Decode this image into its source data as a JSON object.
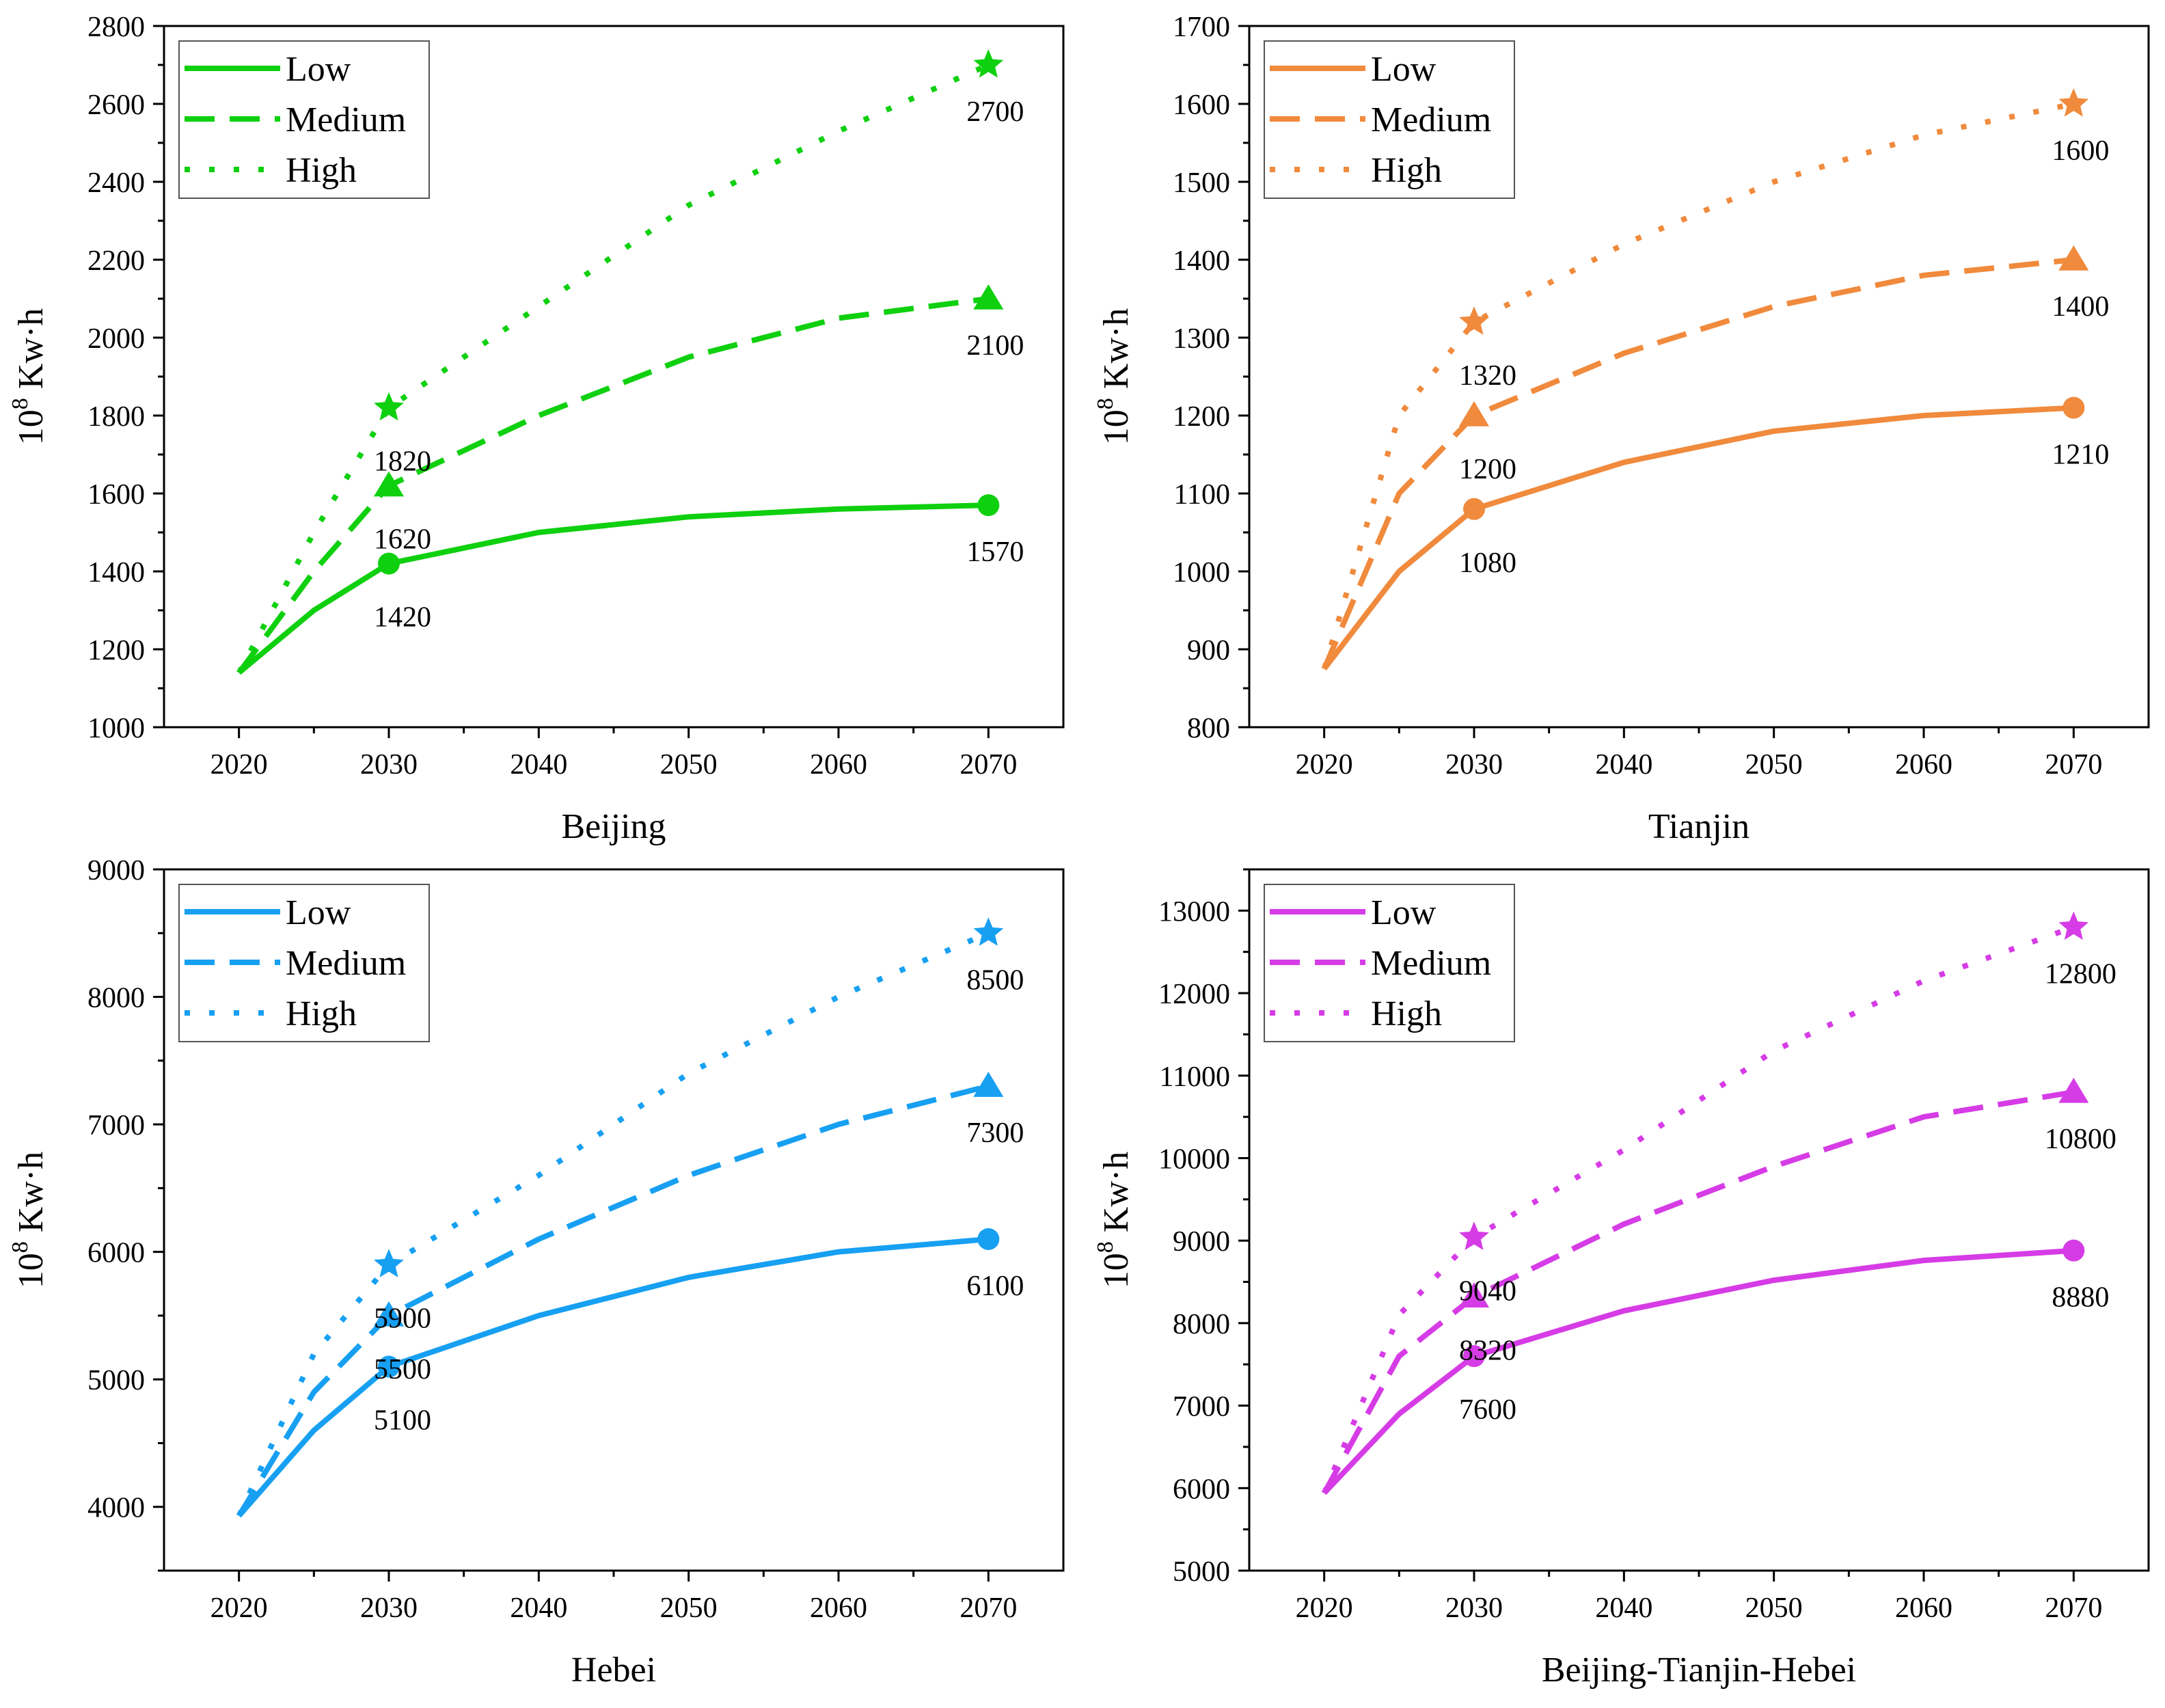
{
  "figure": {
    "y_unit_base": "10",
    "y_unit_exp": "8",
    "y_unit_rest": " Kw·h"
  },
  "chart_data": [
    {
      "type": "line",
      "xlabel": "Beijing",
      "ylabel": "10^8 Kw·h",
      "color": "#0fd00f",
      "x": [
        2020,
        2025,
        2030,
        2040,
        2050,
        2060,
        2070
      ],
      "xticks": [
        "2020",
        "2030",
        "2040",
        "2050",
        "2060",
        "2070"
      ],
      "ylim": [
        1000,
        2800
      ],
      "yticks": [
        "1000",
        "1200",
        "1400",
        "1600",
        "1800",
        "2000",
        "2200",
        "2400",
        "2600",
        "2800"
      ],
      "legend": "top-left",
      "series": [
        {
          "name": "Low",
          "style": "solid",
          "marker": "circle",
          "values": [
            1140,
            1300,
            1420,
            1500,
            1540,
            1560,
            1570
          ]
        },
        {
          "name": "Medium",
          "style": "dashed",
          "marker": "triangle",
          "values": [
            1140,
            1400,
            1620,
            1800,
            1950,
            2050,
            2100
          ]
        },
        {
          "name": "High",
          "style": "dotted",
          "marker": "star",
          "values": [
            1140,
            1500,
            1820,
            2080,
            2340,
            2530,
            2700
          ]
        }
      ],
      "annotations": [
        {
          "series": "Low",
          "x": 2030,
          "text": "1420"
        },
        {
          "series": "Medium",
          "x": 2030,
          "text": "1620"
        },
        {
          "series": "High",
          "x": 2030,
          "text": "1820"
        },
        {
          "series": "Low",
          "x": 2070,
          "text": "1570"
        },
        {
          "series": "Medium",
          "x": 2070,
          "text": "2100"
        },
        {
          "series": "High",
          "x": 2070,
          "text": "2700"
        }
      ]
    },
    {
      "type": "line",
      "xlabel": "Tianjin",
      "ylabel": "10^8 Kw·h",
      "color": "#f08a3c",
      "x": [
        2020,
        2025,
        2030,
        2040,
        2050,
        2060,
        2070
      ],
      "xticks": [
        "2020",
        "2030",
        "2040",
        "2050",
        "2060",
        "2070"
      ],
      "ylim": [
        800,
        1700
      ],
      "yticks": [
        "800",
        "900",
        "1000",
        "1100",
        "1200",
        "1300",
        "1400",
        "1500",
        "1600",
        "1700"
      ],
      "legend": "top-left",
      "series": [
        {
          "name": "Low",
          "style": "solid",
          "marker": "circle",
          "values": [
            875,
            1000,
            1080,
            1140,
            1180,
            1200,
            1210
          ]
        },
        {
          "name": "Medium",
          "style": "dashed",
          "marker": "triangle",
          "values": [
            875,
            1100,
            1200,
            1280,
            1340,
            1380,
            1400
          ]
        },
        {
          "name": "High",
          "style": "dotted",
          "marker": "star",
          "values": [
            875,
            1200,
            1320,
            1420,
            1500,
            1560,
            1600
          ]
        }
      ],
      "annotations": [
        {
          "series": "Low",
          "x": 2030,
          "text": "1080"
        },
        {
          "series": "Medium",
          "x": 2030,
          "text": "1200"
        },
        {
          "series": "High",
          "x": 2030,
          "text": "1320"
        },
        {
          "series": "Low",
          "x": 2070,
          "text": "1210"
        },
        {
          "series": "Medium",
          "x": 2070,
          "text": "1400"
        },
        {
          "series": "High",
          "x": 2070,
          "text": "1600"
        }
      ]
    },
    {
      "type": "line",
      "xlabel": "Hebei",
      "ylabel": "10^8 Kw·h",
      "color": "#17a0f2",
      "x": [
        2020,
        2025,
        2030,
        2040,
        2050,
        2060,
        2070
      ],
      "xticks": [
        "2020",
        "2030",
        "2040",
        "2050",
        "2060",
        "2070"
      ],
      "ylim": [
        3500,
        9000
      ],
      "yticks": [
        "4000",
        "5000",
        "6000",
        "7000",
        "8000",
        "9000"
      ],
      "legend": "top-left",
      "series": [
        {
          "name": "Low",
          "style": "solid",
          "marker": "circle",
          "values": [
            3930,
            4600,
            5100,
            5500,
            5800,
            6000,
            6100
          ]
        },
        {
          "name": "Medium",
          "style": "dashed",
          "marker": "triangle",
          "values": [
            3930,
            4900,
            5500,
            6100,
            6600,
            7000,
            7300
          ]
        },
        {
          "name": "High",
          "style": "dotted",
          "marker": "star",
          "values": [
            3930,
            5200,
            5900,
            6600,
            7400,
            8000,
            8500
          ]
        }
      ],
      "annotations": [
        {
          "series": "Low",
          "x": 2030,
          "text": "5100"
        },
        {
          "series": "Medium",
          "x": 2030,
          "text": "5500"
        },
        {
          "series": "High",
          "x": 2030,
          "text": "5900"
        },
        {
          "series": "Low",
          "x": 2070,
          "text": "6100"
        },
        {
          "series": "Medium",
          "x": 2070,
          "text": "7300"
        },
        {
          "series": "High",
          "x": 2070,
          "text": "8500"
        }
      ]
    },
    {
      "type": "line",
      "xlabel": "Beijing-Tianjin-Hebei",
      "ylabel": "10^8 Kw·h",
      "color": "#d63ce6",
      "x": [
        2020,
        2025,
        2030,
        2040,
        2050,
        2060,
        2070
      ],
      "xticks": [
        "2020",
        "2030",
        "2040",
        "2050",
        "2060",
        "2070"
      ],
      "ylim": [
        5000,
        13500
      ],
      "yticks": [
        "5000",
        "6000",
        "7000",
        "8000",
        "9000",
        "10000",
        "11000",
        "12000",
        "13000"
      ],
      "legend": "top-left",
      "series": [
        {
          "name": "Low",
          "style": "solid",
          "marker": "circle",
          "values": [
            5940,
            6900,
            7600,
            8150,
            8520,
            8760,
            8880
          ]
        },
        {
          "name": "Medium",
          "style": "dashed",
          "marker": "triangle",
          "values": [
            5940,
            7600,
            8320,
            9200,
            9900,
            10500,
            10800
          ]
        },
        {
          "name": "High",
          "style": "dotted",
          "marker": "star",
          "values": [
            5940,
            8100,
            9040,
            10100,
            11300,
            12150,
            12800
          ]
        }
      ],
      "annotations": [
        {
          "series": "Low",
          "x": 2030,
          "text": "7600"
        },
        {
          "series": "Medium",
          "x": 2030,
          "text": "8320"
        },
        {
          "series": "High",
          "x": 2030,
          "text": "9040"
        },
        {
          "series": "Low",
          "x": 2070,
          "text": "8880"
        },
        {
          "series": "Medium",
          "x": 2070,
          "text": "10800"
        },
        {
          "series": "High",
          "x": 2070,
          "text": "12800"
        }
      ]
    }
  ]
}
